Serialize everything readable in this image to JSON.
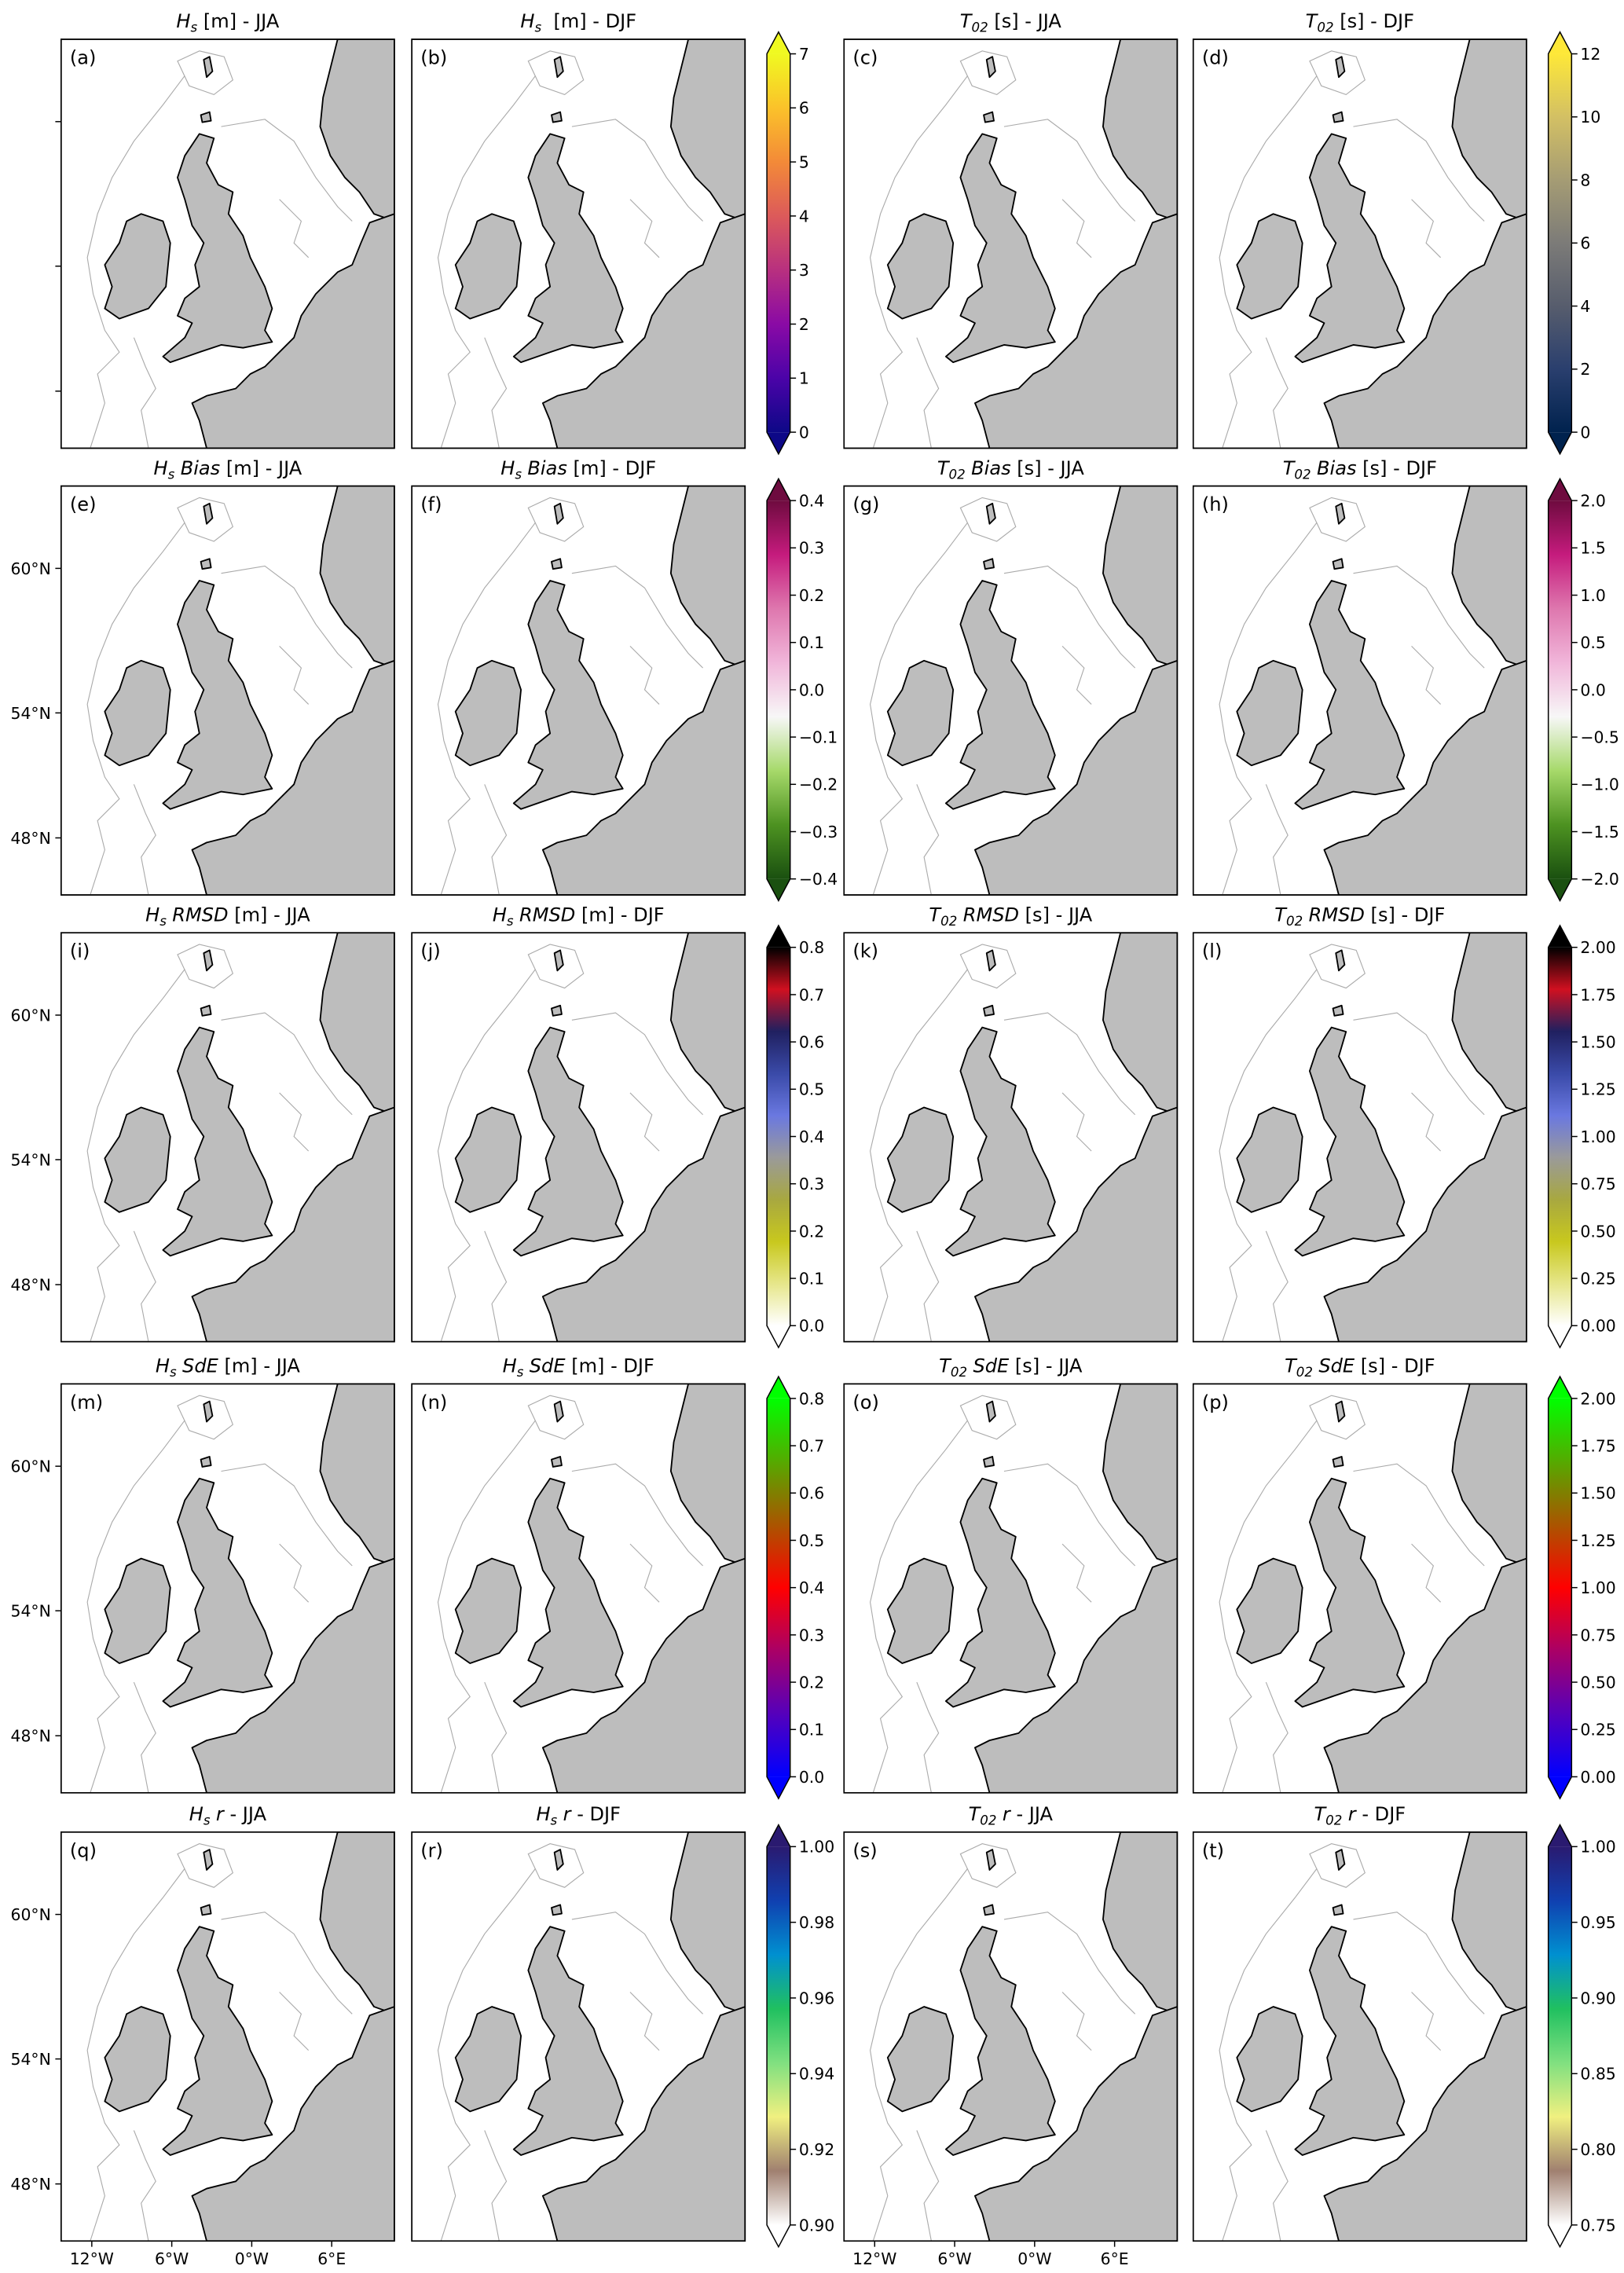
{
  "figure": {
    "projection": "mercator",
    "xlim": [
      -14.3,
      10.7
    ],
    "ylim": [
      45,
      63
    ],
    "lat_ticks": [
      {
        "value": 60,
        "label": "60°N"
      },
      {
        "value": 54,
        "label": "54°N"
      },
      {
        "value": 48,
        "label": "48°N"
      }
    ],
    "lon_ticks": [
      {
        "value": -12,
        "label": "12°W"
      },
      {
        "value": -6,
        "label": "6°W"
      },
      {
        "value": 0,
        "label": "0°W"
      },
      {
        "value": 6,
        "label": "6°E"
      }
    ],
    "panels": [
      {
        "label": "(a)",
        "symbol": "H",
        "subscript": "s",
        "rest": " [m] - JJA",
        "colorbar": 0
      },
      {
        "label": "(b)",
        "symbol": "H",
        "subscript": "s",
        "rest": "  [m] - DJF",
        "colorbar": 0
      },
      {
        "label": "(c)",
        "symbol": "T",
        "subscript": "02",
        "rest": " [s] - JJA",
        "colorbar": 1
      },
      {
        "label": "(d)",
        "symbol": "T",
        "subscript": "02",
        "rest": " [s] - DJF",
        "colorbar": 1
      },
      {
        "label": "(e)",
        "symbol": "H",
        "subscript": "s",
        "stat": "Bias",
        "rest": " [m] - JJA",
        "colorbar": 2
      },
      {
        "label": "(f)",
        "symbol": "H",
        "subscript": "s",
        "stat": "Bias",
        "rest": " [m] - DJF",
        "colorbar": 2
      },
      {
        "label": "(g)",
        "symbol": "T",
        "subscript": "02",
        "stat": "Bias",
        "rest": " [s] - JJA",
        "colorbar": 3
      },
      {
        "label": "(h)",
        "symbol": "T",
        "subscript": "02",
        "stat": "Bias",
        "rest": " [s] - DJF",
        "colorbar": 3
      },
      {
        "label": "(i)",
        "symbol": "H",
        "subscript": "s",
        "stat": "RMSD",
        "rest": " [m] - JJA",
        "colorbar": 4
      },
      {
        "label": "(j)",
        "symbol": "H",
        "subscript": "s",
        "stat": "RMSD",
        "rest": " [m] - DJF",
        "colorbar": 4
      },
      {
        "label": "(k)",
        "symbol": "T",
        "subscript": "02",
        "stat": "RMSD",
        "rest": " [s] - JJA",
        "colorbar": 5
      },
      {
        "label": "(l)",
        "symbol": "T",
        "subscript": "02",
        "stat": "RMSD",
        "rest": " [s] - DJF",
        "colorbar": 5
      },
      {
        "label": "(m)",
        "symbol": "H",
        "subscript": "s",
        "stat": "SdE",
        "rest": " [m] - JJA",
        "colorbar": 6
      },
      {
        "label": "(n)",
        "symbol": "H",
        "subscript": "s",
        "stat": "SdE",
        "rest": " [m] - DJF",
        "colorbar": 6
      },
      {
        "label": "(o)",
        "symbol": "T",
        "subscript": "02",
        "stat": "SdE",
        "rest": " [s] - JJA",
        "colorbar": 7
      },
      {
        "label": "(p)",
        "symbol": "T",
        "subscript": "02",
        "stat": "SdE",
        "rest": " [s] - DJF",
        "colorbar": 7
      },
      {
        "label": "(q)",
        "symbol": "H",
        "subscript": "s",
        "stat": "r",
        "rest": " - JJA",
        "colorbar": 8
      },
      {
        "label": "(r)",
        "symbol": "H",
        "subscript": "s",
        "stat": "r",
        "rest": " - DJF",
        "colorbar": 8
      },
      {
        "label": "(s)",
        "symbol": "T",
        "subscript": "02",
        "stat": "r",
        "rest": " - JJA",
        "colorbar": 9
      },
      {
        "label": "(t)",
        "symbol": "T",
        "subscript": "02",
        "stat": "r",
        "rest": " - DJF",
        "colorbar": 9
      }
    ],
    "colorbars": [
      {
        "lim": [
          0,
          7
        ],
        "extend": "both",
        "ticks": [
          0,
          1,
          2,
          3,
          4,
          5,
          6,
          7
        ],
        "colors": [
          "#0d0887",
          "#4b03a8",
          "#8a0aa5",
          "#b8307f",
          "#dc5a5a",
          "#f38a38",
          "#fbc22a",
          "#f0f921"
        ]
      },
      {
        "lim": [
          0,
          12
        ],
        "extend": "both",
        "ticks": [
          0,
          2,
          4,
          6,
          8,
          10,
          12
        ],
        "colors": [
          "#00224e",
          "#2a3f6e",
          "#575d6d",
          "#7c7b78",
          "#a59c74",
          "#d3c064",
          "#fee838"
        ]
      },
      {
        "lim": [
          -0.4,
          0.4
        ],
        "extend": "both",
        "ticks": [
          {
            "value": -0.4,
            "label": "−0.4"
          },
          {
            "value": -0.3,
            "label": "−0.3"
          },
          {
            "value": -0.2,
            "label": "−0.2"
          },
          {
            "value": -0.1,
            "label": "−0.1"
          },
          {
            "value": 0,
            "label": "0.0"
          },
          0.1,
          0.2,
          0.3,
          0.4
        ],
        "colors": [
          "#1a5010",
          "#4d9221",
          "#a6d96a",
          "#f7f7f7",
          "#f1b6da",
          "#de77ae",
          "#c51b7d",
          "#6e0b3f"
        ]
      },
      {
        "lim": [
          -2,
          2
        ],
        "extend": "both",
        "ticks": [
          {
            "value": -2,
            "label": "−2.0"
          },
          {
            "value": -1.5,
            "label": "−1.5"
          },
          {
            "value": -1,
            "label": "−1.0"
          },
          {
            "value": -0.5,
            "label": "−0.5"
          },
          {
            "value": 0,
            "label": "0.0"
          },
          0.5,
          {
            "value": 1,
            "label": "1.0"
          },
          1.5,
          {
            "value": 2,
            "label": "2.0"
          }
        ],
        "colors": [
          "#1a5010",
          "#4d9221",
          "#a6d96a",
          "#f7f7f7",
          "#f1b6da",
          "#de77ae",
          "#c51b7d",
          "#6e0b3f"
        ]
      },
      {
        "lim": [
          0,
          0.8
        ],
        "extend": "both",
        "ticks": [
          {
            "value": 0,
            "label": "0.0"
          },
          0.1,
          0.2,
          0.3,
          0.4,
          0.5,
          0.6,
          0.7,
          0.8
        ],
        "colors": [
          "#ffffff",
          "#e6e68a",
          "#c8c81e",
          "#a8a840",
          "#9a9a9a",
          "#6a78e0",
          "#3a4aa8",
          "#202060",
          "#d01020",
          "#000000"
        ]
      },
      {
        "lim": [
          0,
          2
        ],
        "extend": "both",
        "ticks": [
          {
            "value": 0,
            "label": "0.00"
          },
          0.25,
          {
            "value": 0.5,
            "label": "0.50"
          },
          0.75,
          {
            "value": 1,
            "label": "1.00"
          },
          1.25,
          {
            "value": 1.5,
            "label": "1.50"
          },
          1.75,
          {
            "value": 2,
            "label": "2.00"
          }
        ],
        "colors": [
          "#ffffff",
          "#e6e68a",
          "#c8c81e",
          "#a8a840",
          "#9a9a9a",
          "#6a78e0",
          "#3a4aa8",
          "#202060",
          "#d01020",
          "#000000"
        ]
      },
      {
        "lim": [
          0,
          0.8
        ],
        "extend": "both",
        "ticks": [
          {
            "value": 0,
            "label": "0.0"
          },
          0.1,
          0.2,
          0.3,
          0.4,
          0.5,
          0.6,
          0.7,
          0.8
        ],
        "colors": [
          "#0000ff",
          "#5500bb",
          "#aa0066",
          "#ff0000",
          "#aa5500",
          "#55aa00",
          "#00ff00"
        ]
      },
      {
        "lim": [
          0,
          2
        ],
        "extend": "both",
        "ticks": [
          {
            "value": 0,
            "label": "0.00"
          },
          0.25,
          {
            "value": 0.5,
            "label": "0.50"
          },
          0.75,
          {
            "value": 1,
            "label": "1.00"
          },
          1.25,
          {
            "value": 1.5,
            "label": "1.50"
          },
          1.75,
          {
            "value": 2,
            "label": "2.00"
          }
        ],
        "colors": [
          "#0000ff",
          "#5500bb",
          "#aa0066",
          "#ff0000",
          "#aa5500",
          "#55aa00",
          "#00ff00"
        ]
      },
      {
        "lim": [
          0.9,
          1
        ],
        "extend": "both",
        "ticks": [
          {
            "value": 0.9,
            "label": "0.90"
          },
          0.92,
          0.94,
          0.96,
          0.98,
          {
            "value": 1,
            "label": "1.00"
          }
        ],
        "colors": [
          "#ffffff",
          "#a08070",
          "#f0f080",
          "#80e080",
          "#20c060",
          "#0090d0",
          "#1040b0",
          "#2a1a70"
        ]
      },
      {
        "lim": [
          0.75,
          1
        ],
        "extend": "both",
        "ticks": [
          0.75,
          {
            "value": 0.8,
            "label": "0.80"
          },
          0.85,
          {
            "value": 0.9,
            "label": "0.90"
          },
          0.95,
          {
            "value": 1,
            "label": "1.00"
          }
        ],
        "colors": [
          "#ffffff",
          "#a08070",
          "#f0f080",
          "#80e080",
          "#20c060",
          "#0090d0",
          "#1040b0",
          "#2a1a70"
        ]
      }
    ]
  }
}
